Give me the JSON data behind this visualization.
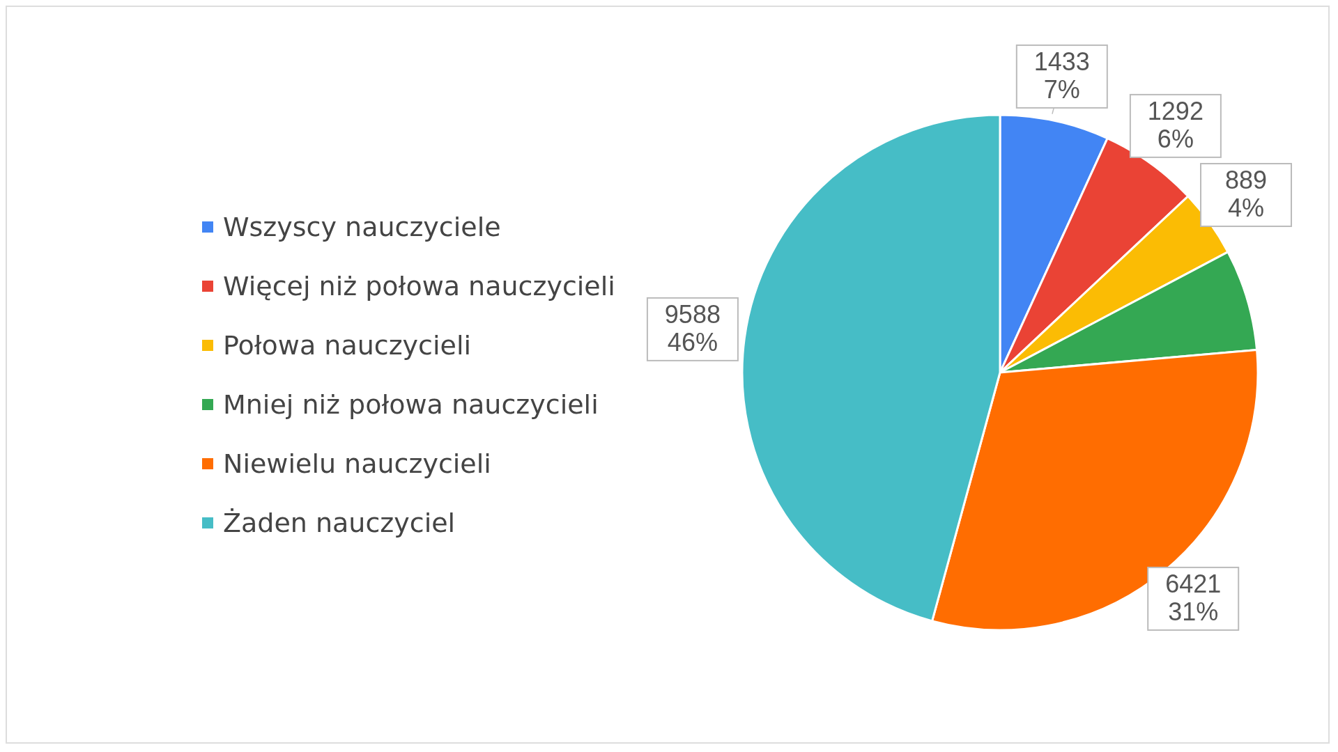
{
  "chart_data": {
    "type": "pie",
    "categories": [
      "Wszyscy nauczyciele",
      "Więcej niż połowa nauczycieli",
      "Połowa nauczycieli",
      "Mniej niż połowa nauczycieli",
      "Niewielu nauczycieli",
      "Żaden nauczyciel"
    ],
    "values": [
      1433,
      1292,
      889,
      1330,
      6421,
      9588
    ],
    "colors": [
      "#4285f4",
      "#ea4335",
      "#fbbc04",
      "#34a853",
      "#ff6d01",
      "#46bdc6"
    ],
    "value_labels": [
      "1433\n7%",
      "1292\n6%",
      "889\n4%",
      null,
      "6421\n31%",
      "9588\n46%"
    ],
    "legend": "left"
  }
}
